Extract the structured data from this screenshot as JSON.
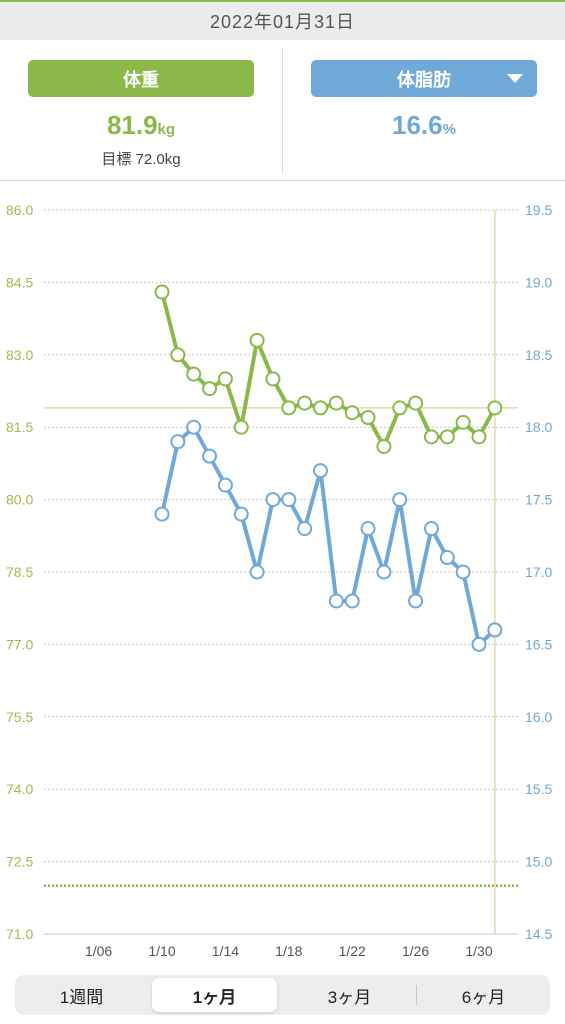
{
  "date_label": "2022年01月31日",
  "weight_panel": {
    "button_label": "体重",
    "value": "81.9",
    "unit": "kg",
    "goal_label": "目標 72.0kg"
  },
  "fat_panel": {
    "button_label": "体脂肪",
    "value": "16.6",
    "unit": "%",
    "dropdown_icon": "caret-down-icon"
  },
  "colors": {
    "weight": "#8ab94a",
    "fat": "#70a9d8",
    "grid": "#c8c8c8",
    "cursor": "#e6d9a8"
  },
  "chart_data": {
    "type": "line",
    "x": [
      "1/10",
      "1/11",
      "1/12",
      "1/13",
      "1/14",
      "1/15",
      "1/16",
      "1/17",
      "1/18",
      "1/19",
      "1/20",
      "1/21",
      "1/22",
      "1/23",
      "1/24",
      "1/25",
      "1/26",
      "1/27",
      "1/28",
      "1/29",
      "1/30",
      "1/31"
    ],
    "x_ticks": [
      "1/06",
      "1/10",
      "1/14",
      "1/18",
      "1/22",
      "1/26",
      "1/30"
    ],
    "series": [
      {
        "axis": "left",
        "values": [
          84.3,
          83.0,
          82.6,
          82.3,
          82.5,
          81.5,
          83.3,
          82.5,
          81.9,
          82.0,
          81.9,
          82.0,
          81.8,
          81.7,
          81.1,
          81.9,
          82.0,
          81.3,
          81.3,
          81.6,
          81.3,
          81.9
        ]
      },
      {
        "axis": "right",
        "values": [
          17.4,
          17.9,
          18.0,
          17.8,
          17.6,
          17.4,
          17.0,
          17.5,
          17.5,
          17.3,
          17.7,
          16.8,
          16.8,
          17.3,
          17.0,
          17.5,
          16.8,
          17.3,
          17.1,
          17.0,
          16.5,
          16.6
        ]
      }
    ],
    "left_axis": {
      "ylim": [
        71.0,
        86.0
      ],
      "ticks": [
        "86.0",
        "84.5",
        "83.0",
        "81.5",
        "80.0",
        "78.5",
        "77.0",
        "75.5",
        "74.0",
        "72.5",
        "71.0"
      ]
    },
    "right_axis": {
      "ylim": [
        14.5,
        19.5
      ],
      "ticks": [
        "19.5",
        "19.0",
        "18.5",
        "18.0",
        "17.5",
        "17.0",
        "16.5",
        "16.0",
        "15.5",
        "15.0",
        "14.5"
      ]
    },
    "goal_line": 72.0,
    "current_reference": 81.9,
    "grid": true
  },
  "range_tabs": [
    {
      "label": "1週間",
      "active": false
    },
    {
      "label": "1ヶ月",
      "active": true
    },
    {
      "label": "3ヶ月",
      "active": false
    },
    {
      "label": "6ヶ月",
      "active": false
    }
  ]
}
